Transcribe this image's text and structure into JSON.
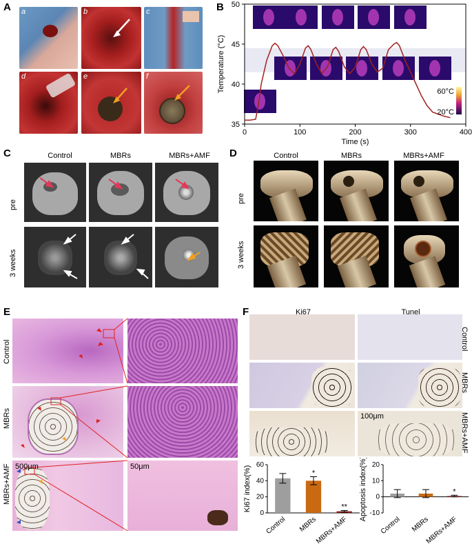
{
  "panels": {
    "A": {
      "label": "A",
      "sub": [
        "a",
        "b",
        "c",
        "d",
        "e",
        "f"
      ]
    },
    "B": {
      "label": "B"
    },
    "C": {
      "label": "C",
      "columns": [
        "Control",
        "MBRs",
        "MBRs+AMF"
      ],
      "rows": [
        "pre",
        "3 weeks"
      ]
    },
    "D": {
      "label": "D",
      "columns": [
        "Control",
        "MBRs",
        "MBRs+AMF"
      ],
      "rows": [
        "pre",
        "3 weeks"
      ]
    },
    "E": {
      "label": "E",
      "rows": [
        "Control",
        "MBRs",
        "MBRs+AMF"
      ],
      "scale_left": "500μm",
      "scale_right": "50μm"
    },
    "F": {
      "label": "F",
      "columns": [
        "Ki67",
        "Tunel"
      ],
      "rows": [
        "Control",
        "MBRs",
        "MBRs+AMF"
      ],
      "scale": "100μm"
    }
  },
  "chart_data": [
    {
      "type": "line",
      "ylabel": "Temperature (°C)",
      "xlabel": "Time (s)",
      "xlim": [
        0,
        400
      ],
      "ylim": [
        35,
        50
      ],
      "xticks": [
        0,
        100,
        200,
        300,
        400
      ],
      "yticks": [
        35,
        40,
        45,
        50
      ],
      "band": [
        41.5,
        44.5
      ],
      "colorbar": {
        "max": "60°C",
        "min": "20°C"
      },
      "series": [
        {
          "x": [
            0,
            10,
            20,
            25,
            30,
            40,
            50,
            55,
            60,
            70,
            80,
            90,
            100,
            110,
            115,
            120,
            130,
            140,
            150,
            160,
            165,
            170,
            180,
            190,
            200,
            210,
            215,
            220,
            230,
            240,
            250,
            260,
            270,
            275,
            280,
            290,
            300,
            310,
            320,
            330,
            340,
            360,
            372
          ],
          "y": [
            35.5,
            35.5,
            35.6,
            37.5,
            40,
            43,
            44.8,
            45.1,
            44.8,
            43.5,
            42,
            41.3,
            42.5,
            44.5,
            44.8,
            44.3,
            42.5,
            41.3,
            42.2,
            44.3,
            44.6,
            44.1,
            42.2,
            41.3,
            42.1,
            44.3,
            44.7,
            44.3,
            42.5,
            41.5,
            42,
            44.3,
            45,
            45.2,
            44.8,
            43,
            41.5,
            40,
            38.5,
            37.3,
            36.5,
            36,
            35.8
          ]
        }
      ]
    },
    {
      "type": "bar",
      "ylabel": "Ki67 index(%)",
      "categories": [
        "Control",
        "MBRs",
        "MBRs+AMF"
      ],
      "values": [
        43,
        40,
        2
      ],
      "errors": [
        6,
        5,
        1
      ],
      "colors": [
        "#9e9e9e",
        "#c96a12",
        "#8a1a1a"
      ],
      "ylim": [
        0,
        60
      ],
      "yticks": [
        0,
        20,
        40,
        60
      ],
      "annotations": [
        "",
        "*",
        "**"
      ]
    },
    {
      "type": "bar",
      "ylabel": "Apoptosis index(%)",
      "categories": [
        "Control",
        "MBRs",
        "MBRs+AMF"
      ],
      "values": [
        2,
        2,
        0.5
      ],
      "errors": [
        2.5,
        2.5,
        0.5
      ],
      "colors": [
        "#9e9e9e",
        "#c96a12",
        "#8a1a1a"
      ],
      "ylim": [
        -10,
        20
      ],
      "yticks": [
        -10,
        0,
        10,
        20
      ],
      "annotations": [
        "",
        "",
        "*"
      ]
    }
  ]
}
